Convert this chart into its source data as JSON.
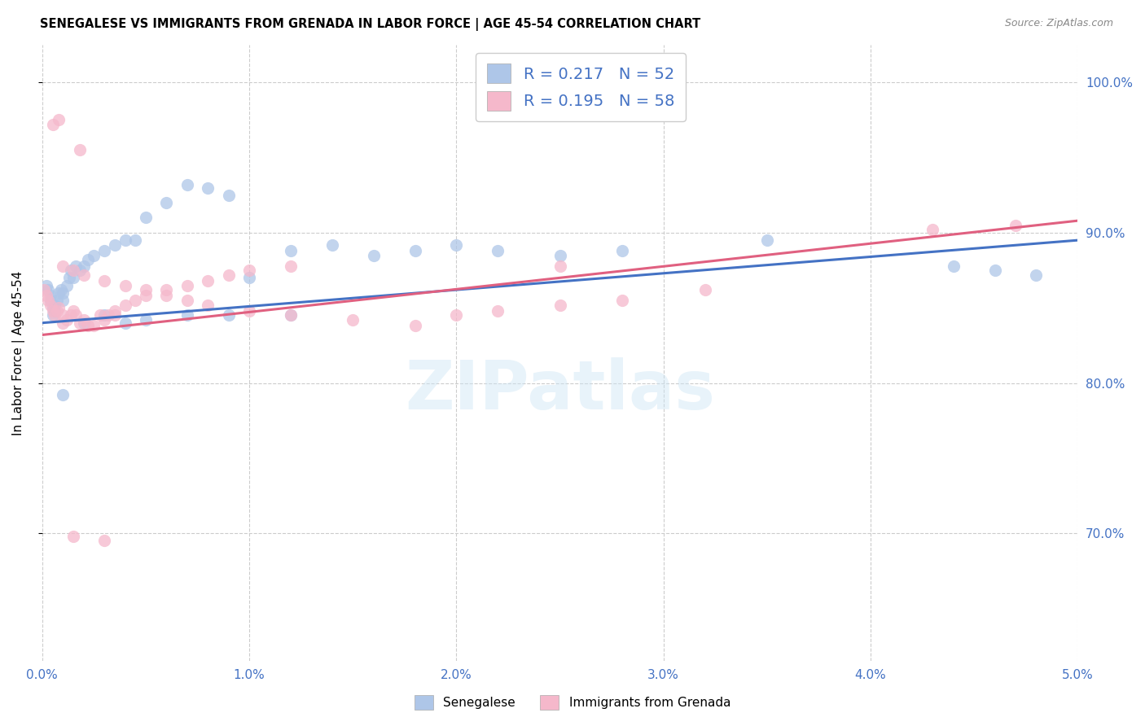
{
  "title": "SENEGALESE VS IMMIGRANTS FROM GRENADA IN LABOR FORCE | AGE 45-54 CORRELATION CHART",
  "source": "Source: ZipAtlas.com",
  "ylabel_label": "In Labor Force | Age 45-54",
  "legend_r1": "R = 0.217",
  "legend_n1": "N = 52",
  "legend_r2": "R = 0.195",
  "legend_n2": "N = 58",
  "legend_label1": "Senegalese",
  "legend_label2": "Immigrants from Grenada",
  "color_blue": "#aec6e8",
  "color_pink": "#f5b8cb",
  "color_blue_line": "#4472c4",
  "color_pink_line": "#e06080",
  "color_text_blue": "#4472c4",
  "xlim": [
    0.0,
    0.05
  ],
  "ylim": [
    0.615,
    1.025
  ],
  "blue_x": [
    0.0002,
    0.0003,
    0.0004,
    0.0004,
    0.0005,
    0.0005,
    0.0006,
    0.0006,
    0.0007,
    0.0008,
    0.0009,
    0.001,
    0.001,
    0.0012,
    0.0013,
    0.0014,
    0.0015,
    0.0016,
    0.0018,
    0.002,
    0.0022,
    0.0025,
    0.003,
    0.0035,
    0.004,
    0.0045,
    0.005,
    0.006,
    0.007,
    0.008,
    0.009,
    0.01,
    0.012,
    0.014,
    0.016,
    0.018,
    0.02,
    0.022,
    0.025,
    0.028,
    0.001,
    0.002,
    0.003,
    0.004,
    0.005,
    0.007,
    0.009,
    0.012,
    0.035,
    0.044,
    0.046,
    0.048
  ],
  "blue_y": [
    0.865,
    0.862,
    0.855,
    0.858,
    0.85,
    0.845,
    0.852,
    0.848,
    0.855,
    0.86,
    0.862,
    0.86,
    0.855,
    0.865,
    0.87,
    0.875,
    0.87,
    0.878,
    0.875,
    0.878,
    0.882,
    0.885,
    0.888,
    0.892,
    0.895,
    0.895,
    0.91,
    0.92,
    0.932,
    0.93,
    0.925,
    0.87,
    0.888,
    0.892,
    0.885,
    0.888,
    0.892,
    0.888,
    0.885,
    0.888,
    0.792,
    0.84,
    0.845,
    0.84,
    0.842,
    0.845,
    0.845,
    0.845,
    0.895,
    0.878,
    0.875,
    0.872
  ],
  "pink_x": [
    0.0001,
    0.0002,
    0.0003,
    0.0004,
    0.0005,
    0.0006,
    0.0007,
    0.0008,
    0.001,
    0.001,
    0.0012,
    0.0014,
    0.0015,
    0.0016,
    0.0018,
    0.002,
    0.0022,
    0.0025,
    0.003,
    0.0032,
    0.0035,
    0.004,
    0.0045,
    0.005,
    0.006,
    0.007,
    0.008,
    0.009,
    0.01,
    0.012,
    0.001,
    0.0015,
    0.002,
    0.003,
    0.004,
    0.005,
    0.006,
    0.007,
    0.008,
    0.01,
    0.012,
    0.015,
    0.018,
    0.02,
    0.022,
    0.025,
    0.028,
    0.032,
    0.0008,
    0.0005,
    0.0018,
    0.0028,
    0.0035,
    0.025,
    0.043,
    0.047,
    0.0015,
    0.003
  ],
  "pink_y": [
    0.862,
    0.858,
    0.855,
    0.852,
    0.848,
    0.845,
    0.848,
    0.85,
    0.845,
    0.84,
    0.842,
    0.845,
    0.848,
    0.845,
    0.84,
    0.842,
    0.838,
    0.838,
    0.842,
    0.845,
    0.848,
    0.852,
    0.855,
    0.858,
    0.862,
    0.865,
    0.868,
    0.872,
    0.875,
    0.878,
    0.878,
    0.875,
    0.872,
    0.868,
    0.865,
    0.862,
    0.858,
    0.855,
    0.852,
    0.848,
    0.845,
    0.842,
    0.838,
    0.845,
    0.848,
    0.852,
    0.855,
    0.862,
    0.975,
    0.972,
    0.955,
    0.845,
    0.845,
    0.878,
    0.902,
    0.905,
    0.698,
    0.695
  ]
}
